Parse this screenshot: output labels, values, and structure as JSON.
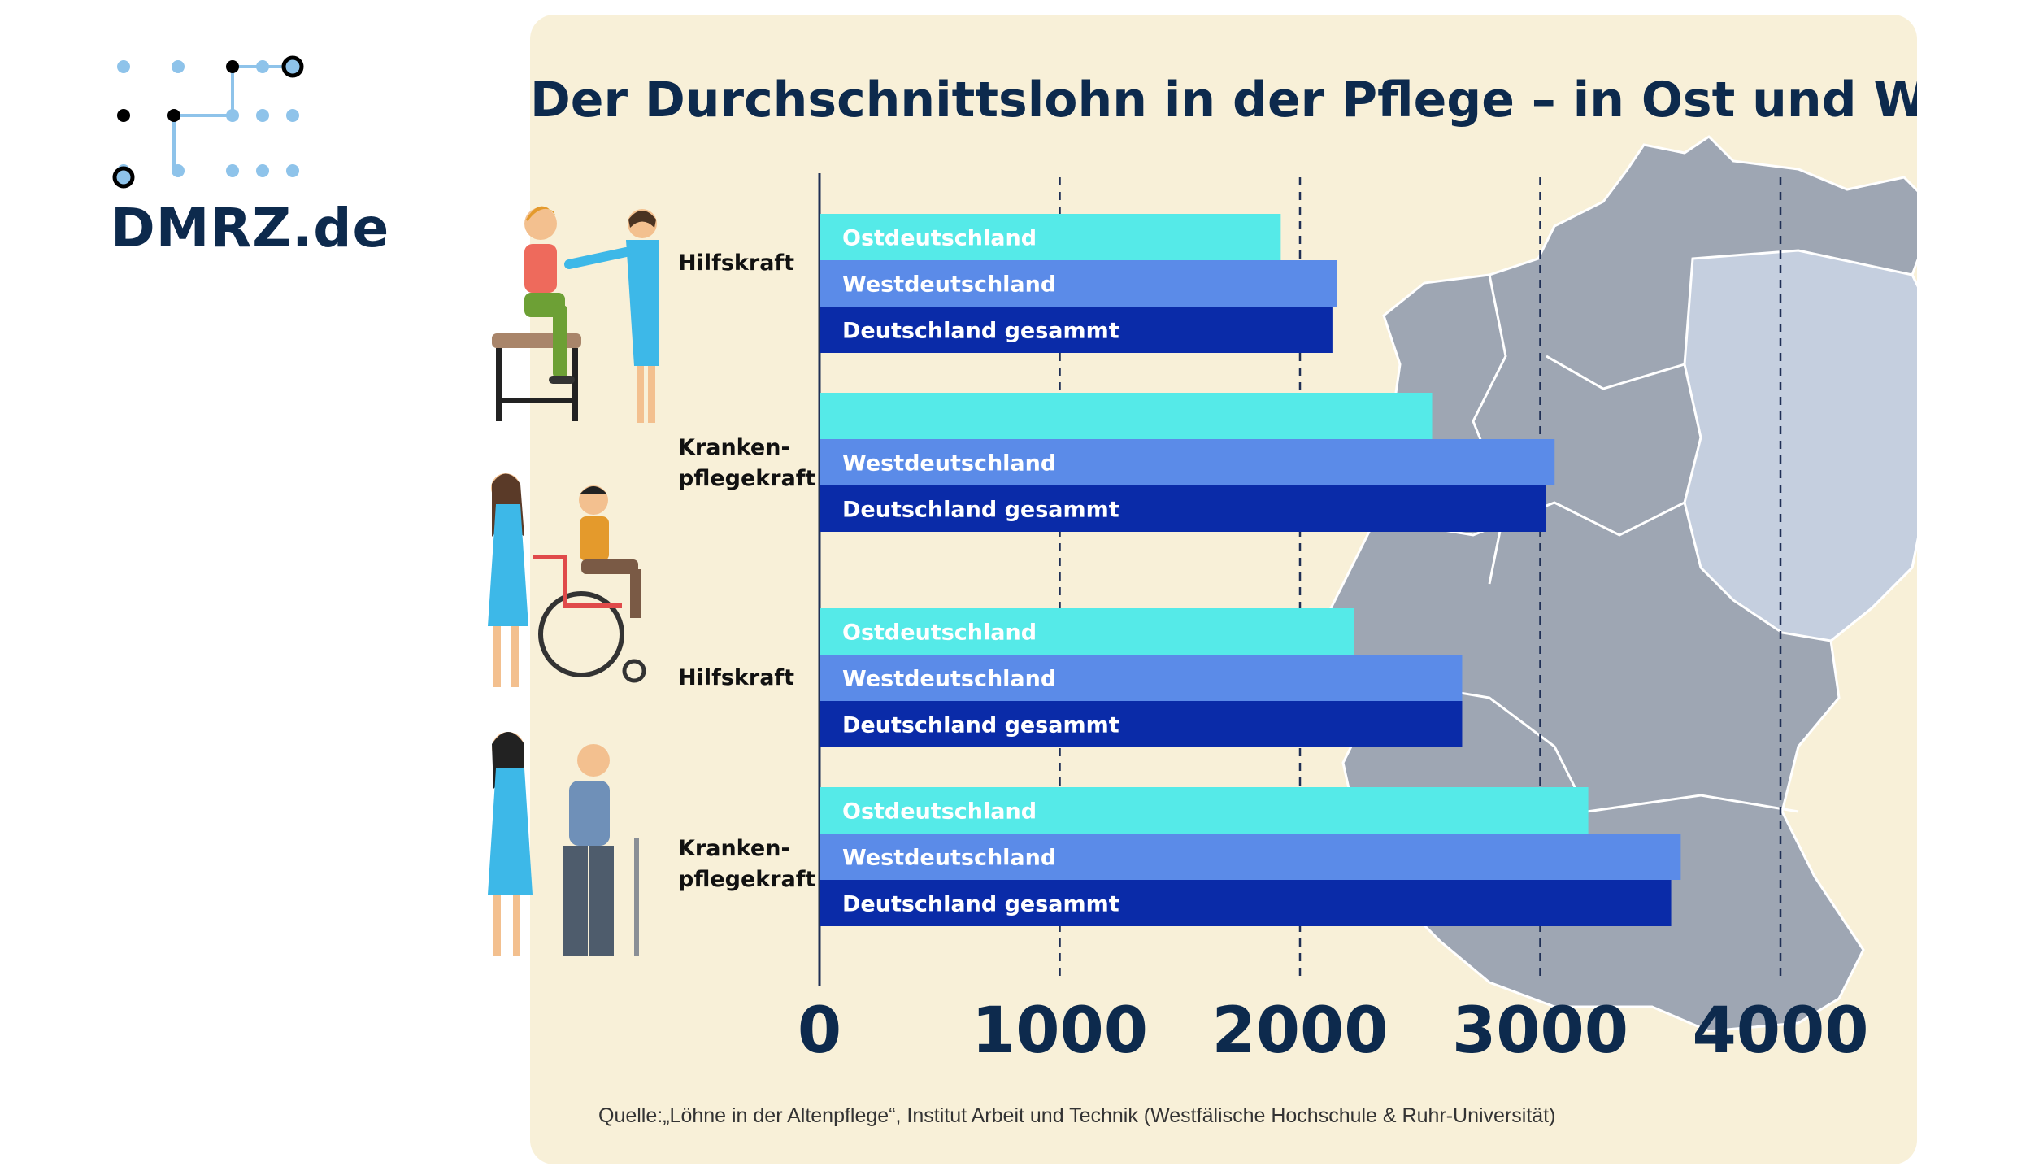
{
  "brand": {
    "logo_text": "DMRZ.de",
    "logo_icon": "dot-grid-path-icon"
  },
  "colors": {
    "ost": "#55eae8",
    "west": "#5b8be8",
    "gesamt": "#0a2ba8",
    "panel": "#f8f0d8",
    "title": "#0d2a4d"
  },
  "chart_data": {
    "type": "bar",
    "orientation": "horizontal",
    "title": "Der Durchschnittslohn in der Pflege – in Ost und West",
    "xlim": [
      0,
      4500
    ],
    "xticks": [
      0,
      1000,
      2000,
      3000,
      4000
    ],
    "grid": "dashed vertical",
    "groups": [
      {
        "label_lines": [
          "Hilfskraft"
        ],
        "bars": [
          {
            "series": "Ostdeutschland",
            "label": "Ostdeutschland",
            "value": 1920
          },
          {
            "series": "Westdeutschland",
            "label": "Westdeutschland",
            "value": 2155
          },
          {
            "series": "Deutschland gesammt",
            "label": "Deutschland gesammt",
            "value": 2135
          }
        ]
      },
      {
        "label_lines": [
          "Kranken-",
          "pflegekraft"
        ],
        "bars": [
          {
            "series": "Ostdeutschland",
            "label": "",
            "value": 2550
          },
          {
            "series": "Westdeutschland",
            "label": "Westdeutschland",
            "value": 3060
          },
          {
            "series": "Deutschland gesammt",
            "label": "Deutschland gesammt",
            "value": 3025
          }
        ]
      },
      {
        "label_lines": [
          "Hilfskraft"
        ],
        "bars": [
          {
            "series": "Ostdeutschland",
            "label": "Ostdeutschland",
            "value": 2225
          },
          {
            "series": "Westdeutschland",
            "label": "Westdeutschland",
            "value": 2675
          },
          {
            "series": "Deutschland gesammt",
            "label": "Deutschland gesammt",
            "value": 2675
          }
        ]
      },
      {
        "label_lines": [
          "Kranken-",
          "pflegekraft"
        ],
        "bars": [
          {
            "series": "Ostdeutschland",
            "label": "Ostdeutschland",
            "value": 3200
          },
          {
            "series": "Westdeutschland",
            "label": "Westdeutschland",
            "value": 3585
          },
          {
            "series": "Deutschland gesammt",
            "label": "Deutschland gesammt",
            "value": 3545
          }
        ]
      }
    ]
  },
  "source": "Quelle:„Löhne in der Altenpflege“, Institut Arbeit und Technik (Westfälische Hochschule & Ruhr-Universität)"
}
